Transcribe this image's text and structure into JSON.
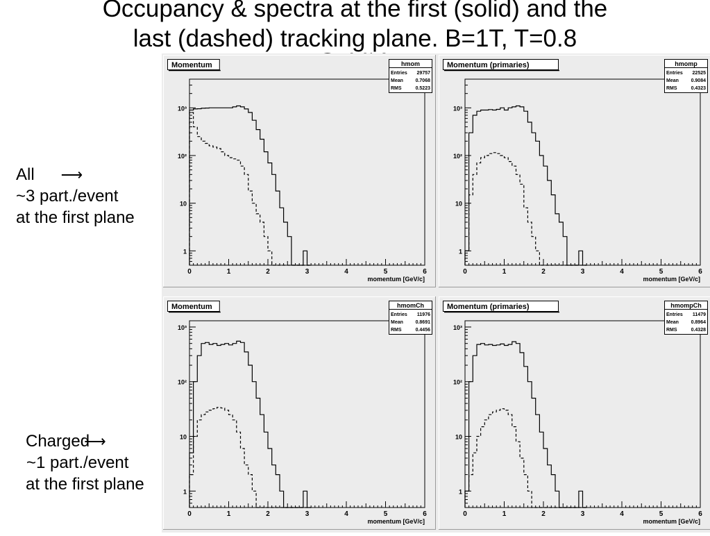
{
  "slide": {
    "title_lines": [
      "Occupancy & spectra at the first (solid) and the",
      "last (dashed) tracking plane. B=1T, T=0.8",
      "GeV*A"
    ],
    "label_all": [
      "All",
      "~3 part./event",
      "at the first plane"
    ],
    "label_charged": [
      "Charged",
      "~1 part./event",
      "at the first plane"
    ]
  },
  "chart_data": [
    {
      "type": "histogram",
      "title": "Momentum",
      "stats": {
        "name": "hmom",
        "rows": [
          [
            "Entries",
            "29757"
          ],
          [
            "Mean",
            "0.7068"
          ],
          [
            "RMS",
            "0.5223"
          ]
        ]
      },
      "xlabel": "momentum [GeV/c]",
      "xlim": [
        0,
        6
      ],
      "xticks": [
        "0",
        "1",
        "2",
        "3",
        "4",
        "5",
        "6"
      ],
      "yscale": "log",
      "ylim": [
        0.5,
        4000
      ],
      "yticks": [
        {
          "v": 1,
          "label": "1"
        },
        {
          "v": 10,
          "label": "10"
        },
        {
          "v": 100,
          "label": "10²"
        },
        {
          "v": 1000,
          "label": "10³"
        }
      ],
      "bin_width": 0.1,
      "series": [
        {
          "style": "solid",
          "values": [
            900,
            950,
            960,
            980,
            990,
            1000,
            1000,
            1000,
            1000,
            1000,
            1000,
            1050,
            1100,
            1050,
            950,
            800,
            550,
            350,
            220,
            120,
            70,
            40,
            18,
            8,
            4,
            2,
            0,
            0,
            0,
            1,
            0
          ]
        },
        {
          "style": "dashed",
          "values": [
            800,
            400,
            250,
            200,
            180,
            160,
            150,
            140,
            120,
            100,
            90,
            85,
            80,
            60,
            40,
            18,
            10,
            6,
            4,
            2,
            1,
            0,
            0,
            0,
            0,
            0,
            0,
            0,
            0,
            0,
            0
          ]
        }
      ]
    },
    {
      "type": "histogram",
      "title": "Momentum (primaries)",
      "stats": {
        "name": "hmomp",
        "rows": [
          [
            "Entries",
            "22525"
          ],
          [
            "Mean",
            "0.9084"
          ],
          [
            "RMS",
            "0.4323"
          ]
        ]
      },
      "xlabel": "momentum [GeV/c]",
      "xlim": [
        0,
        6
      ],
      "xticks": [
        "0",
        "1",
        "2",
        "3",
        "4",
        "5",
        "6"
      ],
      "yscale": "log",
      "ylim": [
        0.5,
        4000
      ],
      "yticks": [
        {
          "v": 1,
          "label": "1"
        },
        {
          "v": 10,
          "label": "10"
        },
        {
          "v": 100,
          "label": "10²"
        },
        {
          "v": 1000,
          "label": "10³"
        }
      ],
      "bin_width": 0.1,
      "series": [
        {
          "style": "solid",
          "values": [
            1,
            300,
            700,
            850,
            900,
            900,
            920,
            900,
            930,
            1000,
            900,
            1000,
            1050,
            1100,
            1050,
            850,
            500,
            300,
            200,
            100,
            60,
            30,
            15,
            6,
            4,
            2,
            0,
            0,
            0,
            1,
            0
          ]
        },
        {
          "style": "dashed",
          "values": [
            1,
            15,
            40,
            70,
            90,
            100,
            110,
            115,
            110,
            100,
            90,
            75,
            60,
            40,
            25,
            8,
            4,
            2,
            1,
            0,
            0,
            0,
            0,
            0,
            0,
            0,
            0,
            0,
            0,
            0,
            0
          ]
        }
      ]
    },
    {
      "type": "histogram",
      "title": "Momentum",
      "stats": {
        "name": "hmomCh",
        "rows": [
          [
            "Entries",
            "11976"
          ],
          [
            "Mean",
            "0.8691"
          ],
          [
            "RMS",
            "0.4456"
          ]
        ]
      },
      "xlabel": "momentum [GeV/c]",
      "xlim": [
        0,
        6
      ],
      "xticks": [
        "0",
        "1",
        "2",
        "3",
        "4",
        "5",
        "6"
      ],
      "yscale": "log",
      "ylim": [
        0.5,
        1300
      ],
      "yticks": [
        {
          "v": 1,
          "label": "1"
        },
        {
          "v": 10,
          "label": "10"
        },
        {
          "v": 100,
          "label": "10²"
        },
        {
          "v": 1000,
          "label": "10³"
        }
      ],
      "bin_width": 0.1,
      "series": [
        {
          "style": "solid",
          "values": [
            5,
            100,
            300,
            500,
            520,
            480,
            500,
            460,
            480,
            500,
            470,
            500,
            550,
            520,
            350,
            200,
            100,
            50,
            25,
            12,
            6,
            3,
            2,
            1,
            0,
            0,
            0,
            0,
            0,
            1,
            0
          ]
        },
        {
          "style": "dashed",
          "values": [
            2,
            10,
            20,
            25,
            28,
            30,
            32,
            34,
            33,
            30,
            25,
            20,
            12,
            6,
            3,
            2,
            1,
            0,
            0,
            0,
            0,
            0,
            0,
            0,
            0,
            0,
            0,
            0,
            0,
            0,
            0
          ]
        }
      ]
    },
    {
      "type": "histogram",
      "title": "Momentum (primaries)",
      "stats": {
        "name": "hmompCh",
        "rows": [
          [
            "Entries",
            "11479"
          ],
          [
            "Mean",
            "0.8964"
          ],
          [
            "RMS",
            "0.4328"
          ]
        ]
      },
      "xlabel": "momentum [GeV/c]",
      "xlim": [
        0,
        6
      ],
      "xticks": [
        "0",
        "1",
        "2",
        "3",
        "4",
        "5",
        "6"
      ],
      "yscale": "log",
      "ylim": [
        0.5,
        1300
      ],
      "yticks": [
        {
          "v": 1,
          "label": "1"
        },
        {
          "v": 10,
          "label": "10"
        },
        {
          "v": 100,
          "label": "10²"
        },
        {
          "v": 1000,
          "label": "10³"
        }
      ],
      "bin_width": 0.1,
      "series": [
        {
          "style": "solid",
          "values": [
            1,
            100,
            300,
            480,
            500,
            470,
            480,
            460,
            470,
            490,
            460,
            480,
            540,
            500,
            340,
            190,
            100,
            50,
            25,
            12,
            6,
            3,
            2,
            1,
            0,
            0,
            0,
            0,
            0,
            1,
            0
          ]
        },
        {
          "style": "dashed",
          "values": [
            1,
            2,
            5,
            10,
            15,
            20,
            25,
            28,
            30,
            32,
            30,
            25,
            15,
            8,
            4,
            2,
            1,
            0,
            0,
            0,
            0,
            0,
            0,
            0,
            0,
            0,
            0,
            0,
            0,
            0,
            0
          ]
        }
      ]
    }
  ]
}
